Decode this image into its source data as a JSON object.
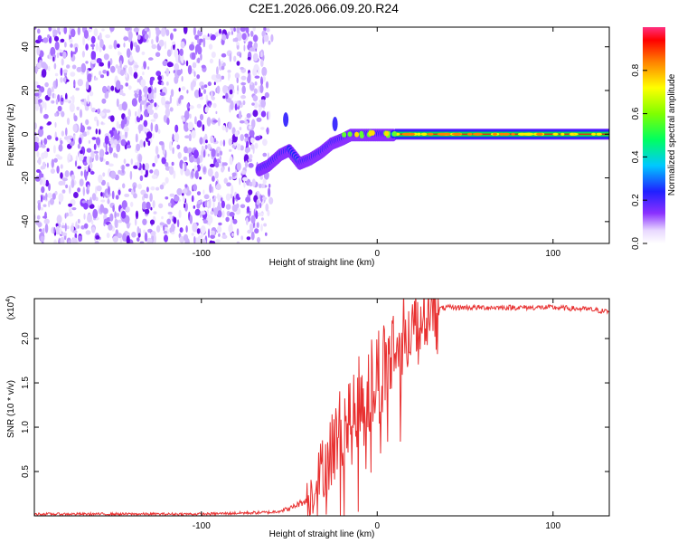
{
  "title": "C2E1.2026.066.09.20.R24",
  "chart_data": [
    {
      "type": "heatmap",
      "xlabel": "Height of straight line (km)",
      "ylabel": "Frequency (Hz)",
      "xlim": [
        -195,
        132
      ],
      "ylim": [
        -50,
        49
      ],
      "xticks": [
        -100,
        0,
        100
      ],
      "yticks": [
        -40,
        -20,
        0,
        20,
        40
      ],
      "colorbar": {
        "label": "Normalized spectral amplitude",
        "range": [
          0,
          1
        ],
        "ticks": [
          0.0,
          0.2,
          0.4,
          0.6,
          0.8
        ]
      },
      "noise_region": {
        "x": [
          -195,
          -62
        ],
        "y": [
          -50,
          49
        ]
      },
      "ridge": [
        {
          "x": -67,
          "y": -16
        },
        {
          "x": -62,
          "y": -14
        },
        {
          "x": -55,
          "y": -9
        },
        {
          "x": -50,
          "y": -7
        },
        {
          "x": -44,
          "y": -13
        },
        {
          "x": -38,
          "y": -11
        },
        {
          "x": -32,
          "y": -8
        },
        {
          "x": -26,
          "y": -4
        },
        {
          "x": -20,
          "y": -2
        },
        {
          "x": -15,
          "y": 0
        },
        {
          "x": -8,
          "y": 0
        },
        {
          "x": 0,
          "y": 0
        },
        {
          "x": 10,
          "y": 0
        },
        {
          "x": 30,
          "y": 0
        },
        {
          "x": 130,
          "y": 0
        }
      ]
    },
    {
      "type": "line",
      "xlabel": "Height of straight line (km)",
      "ylabel": "SNR (10 * v/v)",
      "y_multiplier": "(x10",
      "y_multiplier_exp": "4",
      "y_multiplier_close": ")",
      "xlim": [
        -195,
        132
      ],
      "ylim": [
        0,
        2.45
      ],
      "xticks": [
        -100,
        0,
        100
      ],
      "yticks": [
        0.5,
        1.0,
        1.5,
        2.0
      ],
      "ytick_labels": [
        "0.5",
        "1.0",
        "1.5",
        "2.0"
      ],
      "color": "#e83030",
      "series": [
        {
          "x": [
            -195,
            -150,
            -100,
            -60,
            -50,
            -40,
            -35,
            -30,
            -25,
            -20,
            -15,
            -10,
            -5,
            0,
            5,
            10,
            15,
            20,
            25,
            30,
            40,
            60,
            80,
            100,
            120,
            132
          ],
          "y": [
            0.02,
            0.02,
            0.02,
            0.04,
            0.08,
            0.18,
            0.35,
            0.6,
            0.8,
            1.0,
            1.1,
            1.3,
            1.4,
            1.6,
            1.7,
            1.9,
            2.05,
            2.2,
            2.28,
            2.32,
            2.35,
            2.35,
            2.35,
            2.35,
            2.33,
            2.3
          ]
        }
      ]
    }
  ]
}
